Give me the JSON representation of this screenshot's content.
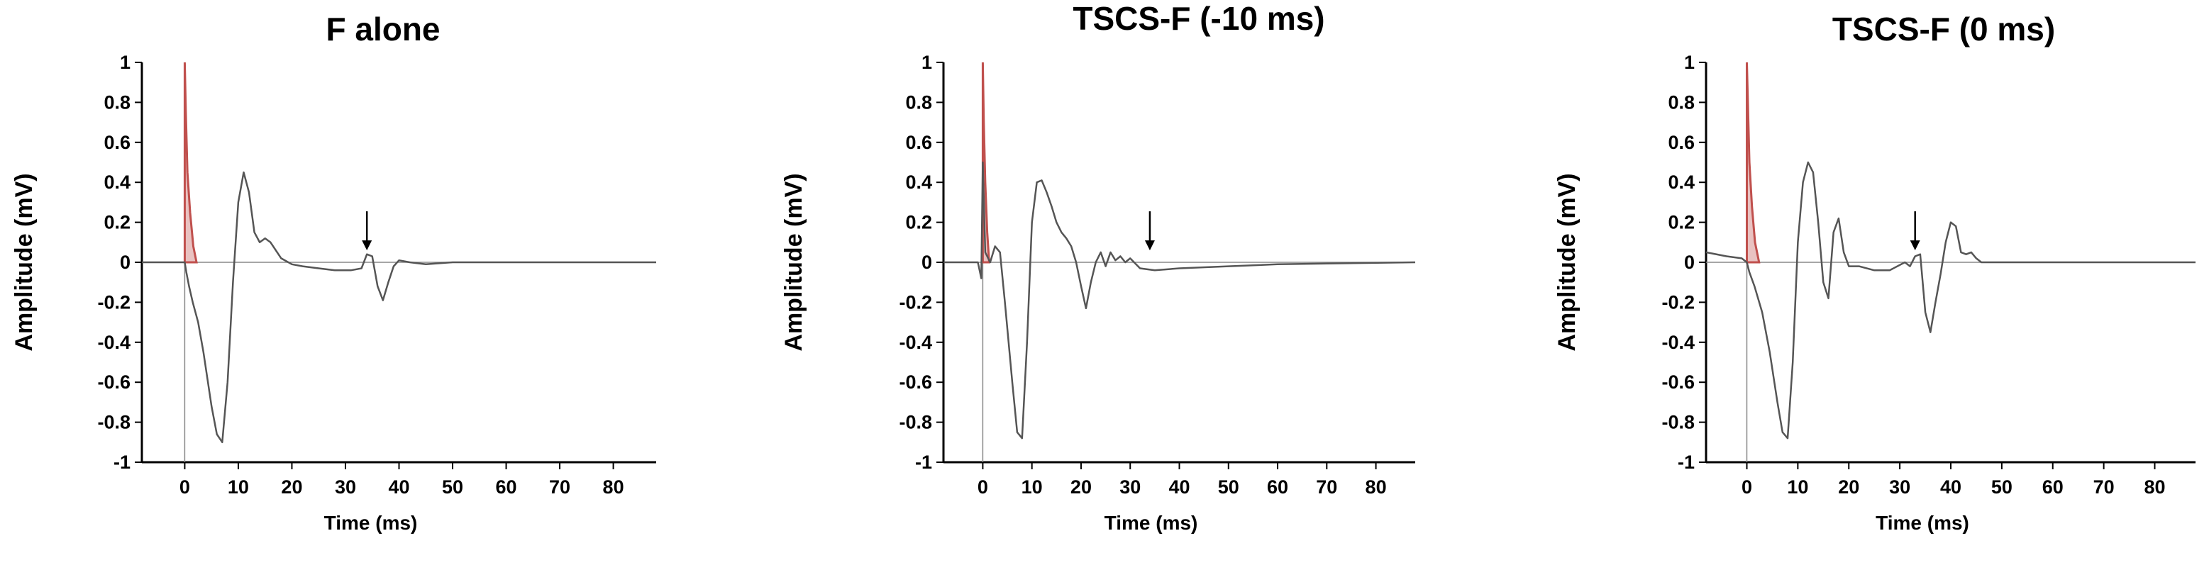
{
  "chart_data": [
    {
      "type": "line",
      "title": "F alone",
      "xlabel": "Time (ms)",
      "ylabel": "Amplitude (mV)",
      "xlim": [
        -8,
        88
      ],
      "ylim": [
        -1,
        1
      ],
      "xticks": [
        0,
        10,
        20,
        30,
        40,
        50,
        60,
        70,
        80
      ],
      "yticks": [
        1,
        0.8,
        0.6,
        0.4,
        0.2,
        0,
        -0.2,
        -0.4,
        -0.6,
        -0.8,
        -1
      ],
      "stimulus_artifact_color": "#c0504d",
      "trace_color": "#555555",
      "arrow_at_ms": 34,
      "series": [
        {
          "x": [
            -8,
            -2,
            -0.3,
            0,
            0.3,
            0.8,
            1.5,
            2.5,
            3.5,
            5,
            6,
            7,
            8,
            9,
            10,
            11,
            12,
            13,
            14,
            15,
            16,
            17,
            18,
            20,
            22,
            25,
            28,
            31,
            33,
            34,
            35,
            36,
            37,
            38,
            39,
            40,
            42,
            45,
            50,
            60,
            70,
            88
          ],
          "y": [
            0,
            0,
            0,
            0,
            -0.05,
            -0.12,
            -0.2,
            -0.3,
            -0.45,
            -0.72,
            -0.86,
            -0.9,
            -0.6,
            -0.1,
            0.3,
            0.45,
            0.35,
            0.15,
            0.1,
            0.12,
            0.1,
            0.06,
            0.02,
            -0.01,
            -0.02,
            -0.03,
            -0.04,
            -0.04,
            -0.03,
            0.04,
            0.03,
            -0.12,
            -0.19,
            -0.1,
            -0.02,
            0.01,
            0,
            -0.01,
            0,
            0,
            0,
            0
          ]
        },
        {
          "x": [
            0,
            0.2,
            0.5,
            1,
            1.6,
            2.2
          ],
          "y": [
            1,
            0.75,
            0.45,
            0.25,
            0.08,
            0
          ]
        }
      ]
    },
    {
      "type": "line",
      "title": "TSCS-F (-10 ms)",
      "xlabel": "Time (ms)",
      "ylabel": "Amplitude (mV)",
      "xlim": [
        -8,
        88
      ],
      "ylim": [
        -1,
        1
      ],
      "xticks": [
        0,
        10,
        20,
        30,
        40,
        50,
        60,
        70,
        80
      ],
      "yticks": [
        1,
        0.8,
        0.6,
        0.4,
        0.2,
        0,
        -0.2,
        -0.4,
        -0.6,
        -0.8,
        -1
      ],
      "stimulus_artifact_color": "#c0504d",
      "trace_color": "#555555",
      "arrow_at_ms": 34,
      "series": [
        {
          "x": [
            -8,
            -1,
            -0.3,
            0,
            0.5,
            1.5,
            2.5,
            3.5,
            4.5,
            6,
            7,
            8,
            9,
            10,
            11,
            12,
            13,
            14,
            15,
            16,
            17,
            18,
            19,
            20,
            21,
            22,
            23,
            24,
            25,
            26,
            27,
            28,
            29,
            30,
            32,
            35,
            40,
            50,
            60,
            88
          ],
          "y": [
            0,
            0,
            -0.08,
            0.5,
            0.05,
            0,
            0.08,
            0.05,
            -0.2,
            -0.6,
            -0.85,
            -0.88,
            -0.4,
            0.2,
            0.4,
            0.41,
            0.35,
            0.28,
            0.2,
            0.15,
            0.12,
            0.08,
            0,
            -0.12,
            -0.23,
            -0.1,
            0,
            0.05,
            -0.02,
            0.05,
            0.01,
            0.03,
            0,
            0.02,
            -0.03,
            -0.04,
            -0.03,
            -0.02,
            -0.01,
            0
          ]
        },
        {
          "x": [
            0,
            0.2,
            0.5,
            0.9,
            1.3
          ],
          "y": [
            1,
            0.7,
            0.4,
            0.15,
            0
          ]
        }
      ]
    },
    {
      "type": "line",
      "title": "TSCS-F (0 ms)",
      "xlabel": "Time (ms)",
      "ylabel": "Amplitude (mV)",
      "xlim": [
        -8,
        88
      ],
      "ylim": [
        -1,
        1
      ],
      "xticks": [
        0,
        10,
        20,
        30,
        40,
        50,
        60,
        70,
        80
      ],
      "yticks": [
        1,
        0.8,
        0.6,
        0.4,
        0.2,
        0,
        -0.2,
        -0.4,
        -0.6,
        -0.8,
        -1
      ],
      "stimulus_artifact_color": "#c0504d",
      "trace_color": "#555555",
      "arrow_at_ms": 33,
      "series": [
        {
          "x": [
            -8,
            -4,
            -1,
            0,
            0.5,
            1.5,
            3,
            4.5,
            6,
            7,
            8,
            9,
            10,
            11,
            12,
            13,
            14,
            15,
            16,
            17,
            18,
            19,
            20,
            22,
            25,
            28,
            31,
            32,
            33,
            34,
            35,
            36,
            37,
            38,
            39,
            40,
            41,
            42,
            43,
            44,
            45,
            46,
            48,
            50,
            60,
            88
          ],
          "y": [
            0.05,
            0.03,
            0.02,
            0,
            -0.05,
            -0.12,
            -0.25,
            -0.45,
            -0.7,
            -0.85,
            -0.88,
            -0.5,
            0.1,
            0.4,
            0.5,
            0.45,
            0.2,
            -0.1,
            -0.18,
            0.15,
            0.22,
            0.05,
            -0.02,
            -0.02,
            -0.04,
            -0.04,
            0,
            -0.02,
            0.03,
            0.04,
            -0.25,
            -0.35,
            -0.2,
            -0.06,
            0.1,
            0.2,
            0.18,
            0.05,
            0.04,
            0.05,
            0.02,
            0,
            0,
            0,
            0,
            0
          ]
        },
        {
          "x": [
            0,
            0.2,
            0.5,
            1,
            1.6,
            2.4
          ],
          "y": [
            1,
            0.8,
            0.5,
            0.28,
            0.1,
            0
          ]
        }
      ]
    }
  ]
}
